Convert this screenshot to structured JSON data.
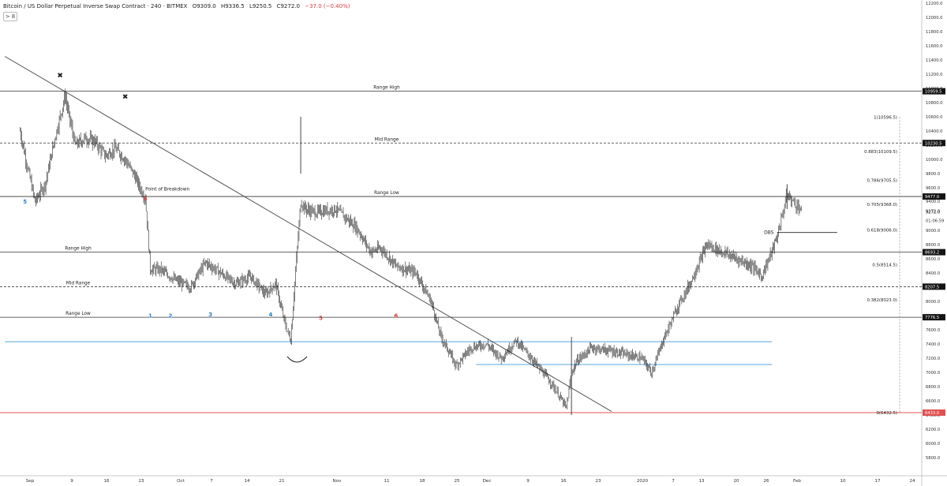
{
  "header": {
    "symbol": "Bitcoin / US Dollar Perpetual Inverse Swap Contract · 240 · BITMEX",
    "open": "O9309.0",
    "high": "H9336.5",
    "low": "L9250.5",
    "close": "C9272.0",
    "change": "−37.0 (−0.40%)",
    "collapse_label": "> 8"
  },
  "colors": {
    "candle": "#1a1a1a",
    "level_line": "#333333",
    "blue_line": "#5ba4dc",
    "red_line": "#e05050",
    "blue_label": "#2a7fd4",
    "red_label": "#d43c3c"
  },
  "chart_data": {
    "type": "line",
    "title": "",
    "xlabel": "",
    "ylabel": "",
    "ylim": [
      5600,
      12200
    ],
    "y_ticks": [
      "12200.0",
      "12000.0",
      "11800.0",
      "11600.0",
      "11400.0",
      "11200.0",
      "11000.0",
      "10800.0",
      "10600.0",
      "10400.0",
      "10200.0",
      "10000.0",
      "9800.0",
      "9600.0",
      "9400.0",
      "9272.0",
      "9000.0",
      "8800.0",
      "8600.0",
      "8400.0",
      "8200.0",
      "8000.0",
      "7800.0",
      "7600.0",
      "7400.0",
      "7200.0",
      "7000.0",
      "6800.0",
      "6600.0",
      "6400.0",
      "6200.0",
      "6000.0",
      "5800.0"
    ],
    "x_ticks": [
      "Sep",
      "9",
      "16",
      "23",
      "Oct",
      "7",
      "14",
      "21",
      "Nov",
      "11",
      "18",
      "25",
      "Dec",
      "9",
      "16",
      "23",
      "2020",
      "7",
      "13",
      "20",
      "26",
      "Feb",
      "10",
      "17",
      "24"
    ],
    "series": [
      {
        "x": [
          "Aug 30",
          "Sep 2",
          "Sep 4",
          "Sep 6",
          "Sep 8",
          "Sep 10",
          "Sep 12",
          "Sep 14",
          "Sep 16",
          "Sep 18",
          "Sep 20",
          "Sep 22",
          "Sep 24",
          "Sep 25",
          "Sep 27",
          "Sep 30",
          "Oct 3",
          "Oct 6",
          "Oct 9",
          "Oct 12",
          "Oct 15",
          "Oct 18",
          "Oct 20",
          "Oct 22",
          "Oct 23",
          "Oct 25",
          "Oct 26",
          "Oct 28",
          "Nov 1",
          "Nov 5",
          "Nov 8",
          "Nov 10",
          "Nov 13",
          "Nov 17",
          "Nov 20",
          "Nov 22",
          "Nov 25",
          "Nov 28",
          "Dec 1",
          "Dec 4",
          "Dec 7",
          "Dec 10",
          "Dec 14",
          "Dec 17",
          "Dec 18",
          "Dec 19",
          "Dec 22",
          "Dec 26",
          "Dec 29",
          "Jan 1",
          "Jan 3",
          "Jan 5",
          "Jan 8",
          "Jan 11",
          "Jan 14",
          "Jan 17",
          "Jan 20",
          "Jan 23",
          "Jan 25",
          "Jan 28",
          "Jan 30",
          "Feb 1",
          "Feb 2"
        ],
        "values": [
          10400,
          9400,
          9650,
          10300,
          10900,
          10200,
          10300,
          10250,
          10050,
          10150,
          10000,
          9750,
          9450,
          8450,
          8450,
          8300,
          8200,
          8550,
          8400,
          8250,
          8350,
          8100,
          8250,
          7650,
          7450,
          9400,
          9300,
          9250,
          9300,
          9050,
          8700,
          8750,
          8500,
          8400,
          8000,
          7500,
          7100,
          7350,
          7400,
          7200,
          7450,
          7200,
          6850,
          6500,
          7000,
          7150,
          7350,
          7300,
          7250,
          7200,
          7000,
          7400,
          7900,
          8300,
          8800,
          8700,
          8600,
          8500,
          8350,
          8900,
          9500,
          9350,
          9280
        ]
      }
    ],
    "horizontal_levels": [
      {
        "label": "Range High",
        "value": 10959.5,
        "tag": "10959.5"
      },
      {
        "label": "Mid Range",
        "value": 10230.5,
        "tag": "10230.5"
      },
      {
        "label": "Range Low",
        "value": 9477.0,
        "tag": "9477.0"
      },
      {
        "label": "Range High",
        "value": 8693.2,
        "tag": "8693.2"
      },
      {
        "label": "Mid Range",
        "value": 8207.5,
        "tag": "8207.5"
      },
      {
        "label": "Range Low",
        "value": 7776.5,
        "tag": "7776.5"
      },
      {
        "label": "",
        "value": 6433.0,
        "tag": "6433.0"
      }
    ],
    "price_tags": [
      {
        "label": "9272.0",
        "value": 9272.0
      },
      {
        "label": "01:06:59",
        "value": 9140
      }
    ],
    "blue_lines": [
      {
        "value": 7432,
        "from": "Aug 27",
        "to": "Jan 27"
      },
      {
        "value": 7111,
        "from": "Nov 29",
        "to": "Jan 27"
      }
    ],
    "fib_levels": [
      {
        "label": "1(10596.5)",
        "value": 10596.5
      },
      {
        "label": "0.883(10109.5)",
        "value": 10109.5
      },
      {
        "label": "0.786(9705.5)",
        "value": 9705.5
      },
      {
        "label": "0.705(9368.0)",
        "value": 9368.0
      },
      {
        "label": "0.618(9006.0)",
        "value": 9006.0
      },
      {
        "label": "0.5(8514.5)",
        "value": 8514.5
      },
      {
        "label": "0.382(8023.0)",
        "value": 8023.0
      },
      {
        "label": "0(6432.5)",
        "value": 6432.5
      }
    ],
    "trendline": {
      "from": {
        "x": "Aug 27",
        "y": 11450
      },
      "to": {
        "x": "Dec 26",
        "y": 6450
      }
    },
    "dbs": {
      "label": "DBS",
      "value": 8970,
      "from": "Jan 28",
      "to": "Feb 9"
    },
    "annotations": [
      {
        "text": "Point of Breakdown",
        "x": "Sep 24",
        "y": 9560
      },
      {
        "text": "✖",
        "x": "Sep 7",
        "y": 11150
      },
      {
        "text": "✖",
        "x": "Sep 20",
        "y": 10850
      },
      {
        "text": "5",
        "x": "Aug 31",
        "y": 9380,
        "color": "blue"
      },
      {
        "text": "6",
        "x": "Sep 24",
        "y": 9420,
        "color": "red"
      },
      {
        "text": "1",
        "x": "Sep 25",
        "y": 7770,
        "color": "blue"
      },
      {
        "text": "2",
        "x": "Sep 29",
        "y": 7770,
        "color": "blue"
      },
      {
        "text": "3",
        "x": "Oct 7",
        "y": 7790,
        "color": "blue"
      },
      {
        "text": "4",
        "x": "Oct 19",
        "y": 7790,
        "color": "blue"
      },
      {
        "text": "5",
        "x": "Oct 29",
        "y": 7740,
        "color": "red"
      },
      {
        "text": "6",
        "x": "Nov 13",
        "y": 7770,
        "color": "red"
      }
    ]
  }
}
